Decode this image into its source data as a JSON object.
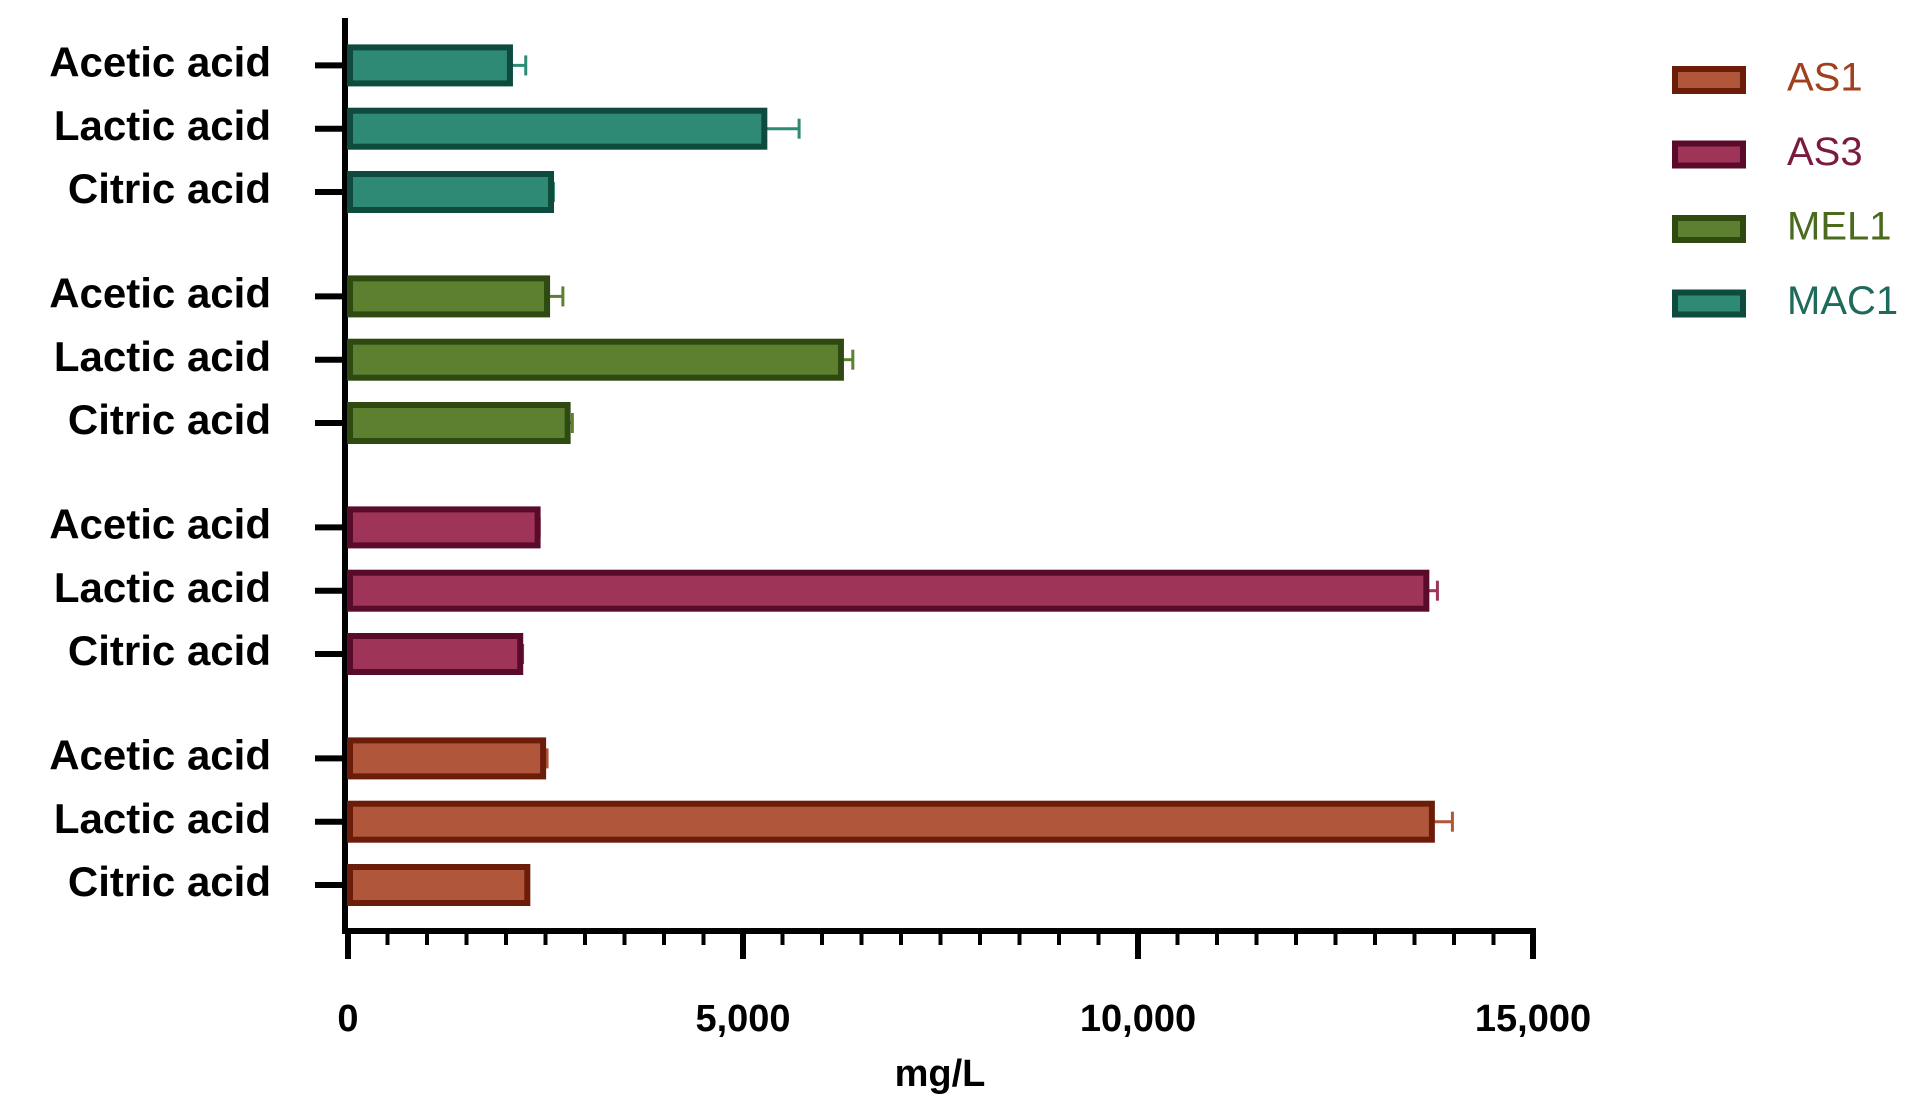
{
  "chart_data": {
    "type": "bar",
    "orientation": "horizontal",
    "categories": [
      "Acetic acid",
      "Lactic acid",
      "Citric acid"
    ],
    "series": [
      {
        "name": "AS1",
        "color": "#b0563a",
        "edge": "#6b1d0a",
        "text_color": "#a0401e",
        "values": [
          2470,
          13720,
          2270
        ],
        "errors": [
          50,
          260,
          0
        ]
      },
      {
        "name": "AS3",
        "color": "#9e3458",
        "edge": "#5a0a2a",
        "text_color": "#7a1a40",
        "values": [
          2400,
          13650,
          2180
        ],
        "errors": [
          20,
          140,
          30
        ]
      },
      {
        "name": "MEL1",
        "color": "#5d8030",
        "edge": "#2e4a10",
        "text_color": "#4a6a1e",
        "values": [
          2520,
          6240,
          2780
        ],
        "errors": [
          200,
          150,
          60
        ]
      },
      {
        "name": "MAC1",
        "color": "#2e8a72",
        "edge": "#0e4a3e",
        "text_color": "#1f6a5a",
        "values": [
          2050,
          5270,
          2570
        ],
        "errors": [
          200,
          440,
          30
        ]
      }
    ],
    "xlabel": "mg/L",
    "xlim": [
      0,
      15000
    ],
    "xticks": [
      0,
      {
        "value": 5000,
        "label": "5,000"
      },
      {
        "value": 10000,
        "label": "10,000"
      },
      {
        "value": 15000,
        "label": "15,000"
      }
    ],
    "legend": "top-right",
    "grid": false
  }
}
